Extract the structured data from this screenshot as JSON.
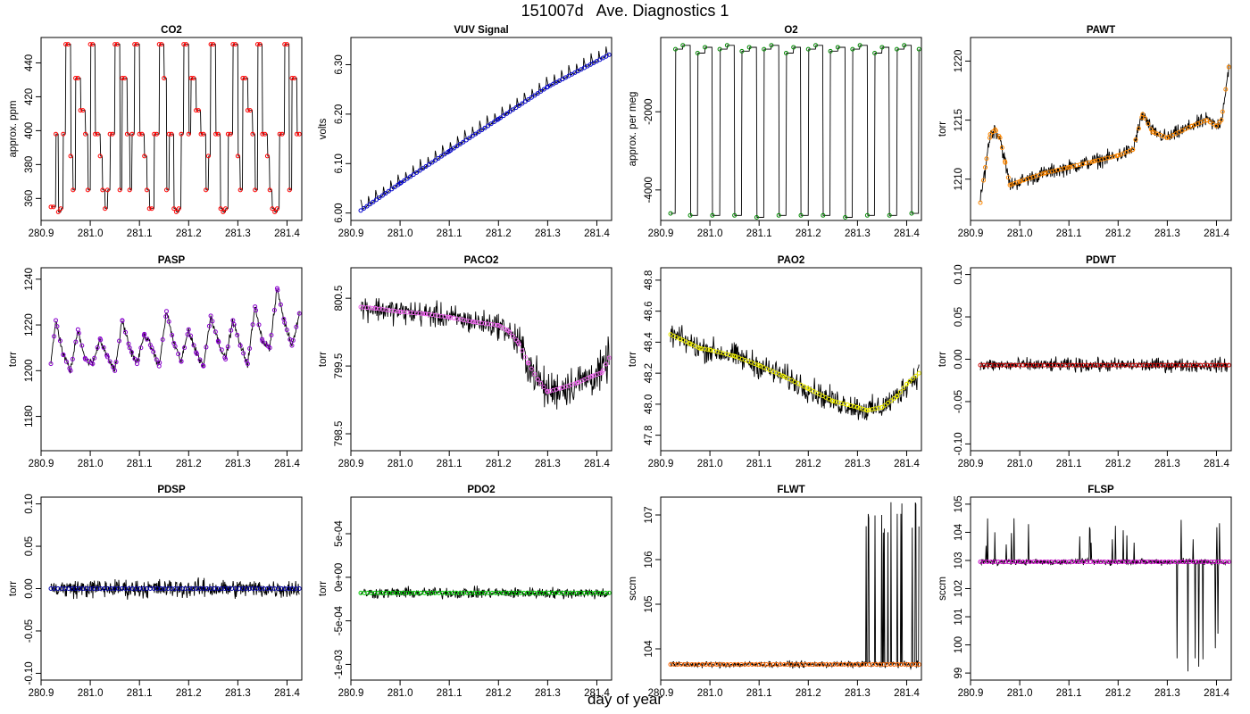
{
  "figure": {
    "title": "151007d   Ave. Diagnostics 1",
    "xlabel": "day of year"
  },
  "chart_data": [
    {
      "id": "co2",
      "type": "line",
      "title": "CO2",
      "ylabel": "approx. ppm",
      "xlim": [
        280.9,
        281.43
      ],
      "ylim": [
        347,
        455
      ],
      "xticks": [
        "280.9",
        "281.0",
        "281.1",
        "281.2",
        "281.3",
        "281.4"
      ],
      "yticks": [
        "360",
        "380",
        "400",
        "420",
        "440"
      ],
      "point_color": "#ff0000",
      "series": [
        {
          "name": "",
          "x": [
            280.92,
            280.925,
            280.93,
            280.935,
            280.94,
            280.945,
            280.95,
            280.955,
            280.96,
            280.965,
            280.97,
            280.975,
            280.98,
            280.985,
            280.99,
            280.995,
            281.0,
            281.005,
            281.01,
            281.015,
            281.02,
            281.025,
            281.03,
            281.035,
            281.04,
            281.045,
            281.05,
            281.055,
            281.06,
            281.065,
            281.07,
            281.075,
            281.08,
            281.085,
            281.09,
            281.095,
            281.1,
            281.105,
            281.11,
            281.115,
            281.12,
            281.125,
            281.13,
            281.135,
            281.14,
            281.145,
            281.15,
            281.155,
            281.16,
            281.165,
            281.17,
            281.175,
            281.18,
            281.185,
            281.19,
            281.195,
            281.2,
            281.205,
            281.21,
            281.215,
            281.22,
            281.225,
            281.23,
            281.235,
            281.24,
            281.245,
            281.25,
            281.255,
            281.26,
            281.265,
            281.27,
            281.275,
            281.28,
            281.285,
            281.29,
            281.295,
            281.3,
            281.305,
            281.31,
            281.315,
            281.32,
            281.325,
            281.33,
            281.335,
            281.34,
            281.345,
            281.35,
            281.355,
            281.36,
            281.365,
            281.37,
            281.375,
            281.38,
            281.385,
            281.39,
            281.395,
            281.4,
            281.405,
            281.41,
            281.415,
            281.42,
            281.425
          ],
          "y": [
            355,
            355,
            398,
            352,
            354,
            398,
            451,
            451,
            385,
            365,
            431,
            431,
            412,
            412,
            398,
            365,
            451,
            451,
            398,
            398,
            385,
            365,
            354,
            365,
            398,
            398,
            451,
            451,
            365,
            431,
            431,
            398,
            365,
            398,
            451,
            451,
            398,
            398,
            385,
            365,
            354,
            354,
            398,
            398,
            451,
            451,
            431,
            365,
            398,
            398,
            354,
            352,
            354,
            398,
            451,
            451,
            398,
            431,
            431,
            412,
            412,
            398,
            398,
            365,
            385,
            451,
            451,
            398,
            398,
            354,
            352,
            354,
            398,
            398,
            451,
            451,
            385,
            365,
            431,
            431,
            412,
            412,
            398,
            365,
            451,
            451,
            398,
            398,
            385,
            365,
            354,
            352,
            354,
            398,
            398,
            451,
            451,
            365,
            431,
            431,
            398,
            398
          ]
        }
      ]
    },
    {
      "id": "vuv",
      "type": "line",
      "title": "VUV Signal",
      "ylabel": "volts",
      "xlim": [
        280.9,
        281.43
      ],
      "ylim": [
        5.985,
        6.355
      ],
      "xticks": [
        "280.9",
        "281.0",
        "281.1",
        "281.2",
        "281.3",
        "281.4"
      ],
      "yticks": [
        "6.00",
        "6.10",
        "6.20",
        "6.30"
      ],
      "point_color": "#0000cc",
      "series": [
        {
          "name": "",
          "x": [
            280.92,
            281.0,
            281.1,
            281.2,
            281.3,
            281.425
          ],
          "y": [
            6.005,
            6.06,
            6.125,
            6.19,
            6.255,
            6.32
          ]
        }
      ]
    },
    {
      "id": "o2",
      "type": "line",
      "title": "O2",
      "ylabel": "approx. per meg",
      "xlim": [
        280.9,
        281.43
      ],
      "ylim": [
        -4780,
        -100
      ],
      "xticks": [
        "280.9",
        "281.0",
        "281.1",
        "281.2",
        "281.3",
        "281.4"
      ],
      "yticks": [
        "-2000",
        "-4000"
      ],
      "point_color": "#008800",
      "series": [
        {
          "name": "",
          "x": [
            280.92,
            280.93,
            280.945,
            280.96,
            280.975,
            280.99,
            281.005,
            281.02,
            281.035,
            281.05,
            281.065,
            281.08,
            281.095,
            281.11,
            281.125,
            281.14,
            281.155,
            281.17,
            281.185,
            281.2,
            281.215,
            281.23,
            281.245,
            281.26,
            281.275,
            281.29,
            281.305,
            281.32,
            281.335,
            281.35,
            281.365,
            281.38,
            281.395,
            281.41,
            281.425
          ],
          "y": [
            -4600,
            -400,
            -300,
            -4650,
            -500,
            -350,
            -4650,
            -400,
            -300,
            -4650,
            -450,
            -350,
            -4700,
            -400,
            -300,
            -4650,
            -500,
            -350,
            -4650,
            -400,
            -300,
            -4650,
            -450,
            -350,
            -4700,
            -400,
            -300,
            -4650,
            -500,
            -350,
            -4650,
            -400,
            -300,
            -4600,
            -400
          ]
        }
      ]
    },
    {
      "id": "pawt",
      "type": "line",
      "title": "PAWT",
      "ylabel": "torr",
      "xlim": [
        280.9,
        281.43
      ],
      "ylim": [
        1206.5,
        1222
      ],
      "xticks": [
        "280.9",
        "281.0",
        "281.1",
        "281.2",
        "281.3",
        "281.4"
      ],
      "yticks": [
        "1210",
        "1215",
        "1220"
      ],
      "point_color": "#ff8800",
      "series": [
        {
          "name": "",
          "x": [
            280.92,
            280.93,
            280.94,
            280.95,
            280.96,
            280.97,
            280.98,
            281.0,
            281.05,
            281.1,
            281.15,
            281.2,
            281.23,
            281.25,
            281.27,
            281.3,
            281.35,
            281.38,
            281.4,
            281.41,
            281.425
          ],
          "y": [
            1208,
            1211,
            1213.8,
            1214.2,
            1213.5,
            1211.5,
            1209.5,
            1209.8,
            1210.5,
            1211,
            1211.5,
            1212,
            1212.5,
            1215.5,
            1214,
            1213.5,
            1214.5,
            1215,
            1214.5,
            1215,
            1219.5
          ]
        }
      ]
    },
    {
      "id": "pasp",
      "type": "line",
      "title": "PASP",
      "ylabel": "torr",
      "xlim": [
        280.9,
        281.43
      ],
      "ylim": [
        1165,
        1245
      ],
      "xticks": [
        "280.9",
        "281.0",
        "281.1",
        "281.2",
        "281.3",
        "281.4"
      ],
      "yticks": [
        "1180",
        "1200",
        "1220",
        "1240"
      ],
      "point_color": "#8800cc",
      "series": [
        {
          "name": "",
          "x": [
            280.92,
            280.93,
            280.945,
            280.96,
            280.975,
            280.99,
            281.005,
            281.02,
            281.035,
            281.05,
            281.065,
            281.08,
            281.095,
            281.11,
            281.125,
            281.14,
            281.155,
            281.17,
            281.185,
            281.2,
            281.215,
            281.23,
            281.245,
            281.26,
            281.275,
            281.29,
            281.305,
            281.32,
            281.335,
            281.35,
            281.365,
            281.38,
            281.395,
            281.41,
            281.425
          ],
          "y": [
            1203,
            1222,
            1207,
            1200,
            1218,
            1205,
            1203,
            1214,
            1206,
            1200,
            1222,
            1210,
            1203,
            1216,
            1210,
            1202,
            1226,
            1212,
            1204,
            1218,
            1208,
            1202,
            1224,
            1213,
            1205,
            1222,
            1211,
            1203,
            1228,
            1213,
            1210,
            1236,
            1221,
            1211,
            1225
          ]
        }
      ]
    },
    {
      "id": "paco2",
      "type": "line",
      "title": "PACO2",
      "ylabel": "torr",
      "xlim": [
        280.9,
        281.43
      ],
      "ylim": [
        798.25,
        800.95
      ],
      "xticks": [
        "280.9",
        "281.0",
        "281.1",
        "281.2",
        "281.3",
        "281.4"
      ],
      "yticks": [
        "798.5",
        "799.5",
        "800.5"
      ],
      "point_color": "#ee66ee",
      "series": [
        {
          "name": "",
          "x": [
            280.92,
            280.95,
            281.0,
            281.05,
            281.1,
            281.15,
            281.2,
            281.22,
            281.24,
            281.26,
            281.28,
            281.3,
            281.33,
            281.36,
            281.39,
            281.41,
            281.425
          ],
          "y": [
            800.37,
            800.35,
            800.3,
            800.27,
            800.22,
            800.15,
            800.1,
            800.02,
            799.85,
            799.55,
            799.3,
            799.12,
            799.18,
            799.25,
            799.35,
            799.4,
            799.62
          ]
        }
      ]
    },
    {
      "id": "pao2",
      "type": "line",
      "title": "PAO2",
      "ylabel": "torr",
      "xlim": [
        280.9,
        281.43
      ],
      "ylim": [
        47.7,
        48.88
      ],
      "xticks": [
        "280.9",
        "281.0",
        "281.1",
        "281.2",
        "281.3",
        "281.4"
      ],
      "yticks": [
        "47.8",
        "48.0",
        "48.2",
        "48.4",
        "48.6",
        "48.8"
      ],
      "point_color": "#eeee00",
      "series": [
        {
          "name": "",
          "x": [
            280.92,
            280.94,
            280.96,
            280.98,
            281.0,
            281.05,
            281.1,
            281.15,
            281.2,
            281.25,
            281.3,
            281.32,
            281.35,
            281.38,
            281.4,
            281.425
          ],
          "y": [
            48.45,
            48.42,
            48.39,
            48.36,
            48.35,
            48.31,
            48.25,
            48.18,
            48.1,
            48.02,
            47.98,
            47.96,
            47.98,
            48.05,
            48.13,
            48.2
          ]
        }
      ]
    },
    {
      "id": "pdwt",
      "type": "line",
      "title": "PDWT",
      "ylabel": "torr",
      "xlim": [
        280.9,
        281.43
      ],
      "ylim": [
        -0.108,
        0.108
      ],
      "xticks": [
        "280.9",
        "281.0",
        "281.1",
        "281.2",
        "281.3",
        "281.4"
      ],
      "yticks": [
        "-0.10",
        "-0.05",
        "0.00",
        "0.05",
        "0.10"
      ],
      "point_color": "#cc0000",
      "series": [
        {
          "name": "",
          "x": [
            280.92,
            281.425
          ],
          "y": [
            -0.007,
            -0.007
          ]
        }
      ]
    },
    {
      "id": "pdsp",
      "type": "line",
      "title": "PDSP",
      "ylabel": "torr",
      "xlim": [
        280.9,
        281.43
      ],
      "ylim": [
        -0.108,
        0.108
      ],
      "xticks": [
        "280.9",
        "281.0",
        "281.1",
        "281.2",
        "281.3",
        "281.4"
      ],
      "yticks": [
        "-0.10",
        "-0.05",
        "0.00",
        "0.05",
        "0.10"
      ],
      "point_color": "#0000aa",
      "series": [
        {
          "name": "",
          "x": [
            280.92,
            281.425
          ],
          "y": [
            0.0,
            0.0
          ]
        }
      ]
    },
    {
      "id": "pdo2",
      "type": "line",
      "title": "PDO2",
      "ylabel": "torr",
      "xlim": [
        280.9,
        281.43
      ],
      "ylim": [
        -0.00118,
        0.00092
      ],
      "xticks": [
        "280.9",
        "281.0",
        "281.1",
        "281.2",
        "281.3",
        "281.4"
      ],
      "yticks": [
        "-1e-03",
        "-5e-04",
        "0e+00",
        "5e-04"
      ],
      "point_color": "#00cc00",
      "series": [
        {
          "name": "",
          "x": [
            280.92,
            281.425
          ],
          "y": [
            -0.00018,
            -0.00018
          ]
        }
      ]
    },
    {
      "id": "flwt",
      "type": "line",
      "title": "FLWT",
      "ylabel": "sccm",
      "xlim": [
        280.9,
        281.43
      ],
      "ylim": [
        103.3,
        107.4
      ],
      "xticks": [
        "280.9",
        "281.0",
        "281.1",
        "281.2",
        "281.3",
        "281.4"
      ],
      "yticks": [
        "104",
        "105",
        "106",
        "107"
      ],
      "point_color": "#ff6600",
      "series": [
        {
          "name": "",
          "x": [
            280.92,
            281.425
          ],
          "y": [
            103.65,
            103.65
          ]
        }
      ]
    },
    {
      "id": "flsp",
      "type": "line",
      "title": "FLSP",
      "ylabel": "sccm",
      "xlim": [
        280.9,
        281.43
      ],
      "ylim": [
        98.75,
        105.25
      ],
      "xticks": [
        "280.9",
        "281.0",
        "281.1",
        "281.2",
        "281.3",
        "281.4"
      ],
      "yticks": [
        "99",
        "100",
        "101",
        "102",
        "103",
        "104",
        "105"
      ],
      "point_color": "#cc00cc",
      "series": [
        {
          "name": "",
          "x": [
            280.92,
            281.425
          ],
          "y": [
            102.95,
            102.95
          ]
        }
      ]
    }
  ]
}
